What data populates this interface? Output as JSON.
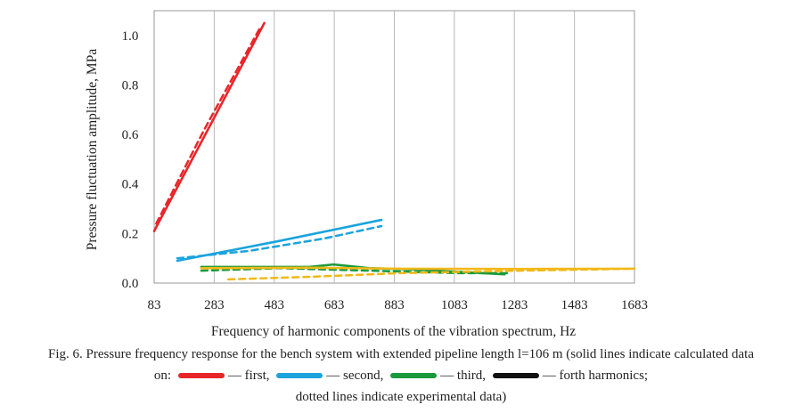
{
  "chart_data": {
    "type": "line",
    "xlabel": "Frequency of harmonic components of the vibration spectrum, Hz",
    "ylabel": "Pressure fluctuation amplitude, MPa",
    "xlim": [
      83,
      1683
    ],
    "ylim": [
      0.0,
      1.1
    ],
    "x_ticks": [
      "83",
      "283",
      "483",
      "683",
      "883",
      "1083",
      "1283",
      "1483",
      "1683"
    ],
    "y_ticks": [
      "0.0",
      "0.2",
      "0.4",
      "0.6",
      "0.8",
      "1.0"
    ],
    "grid": "vertical",
    "series": [
      {
        "harmonic": "first",
        "kind": "calculated",
        "color": "#e8262a",
        "x": [
          83,
          450
        ],
        "y": [
          0.21,
          1.05
        ]
      },
      {
        "harmonic": "first",
        "kind": "experimental",
        "color": "#e8262a",
        "x": [
          90,
          250,
          440
        ],
        "y": [
          0.24,
          0.62,
          1.04
        ]
      },
      {
        "harmonic": "second",
        "kind": "calculated",
        "color": "#1ba3dd",
        "x": [
          160,
          500,
          840
        ],
        "y": [
          0.09,
          0.17,
          0.255
        ]
      },
      {
        "harmonic": "second",
        "kind": "experimental",
        "color": "#1ba3dd",
        "x": [
          160,
          400,
          650,
          840
        ],
        "y": [
          0.1,
          0.13,
          0.18,
          0.23
        ]
      },
      {
        "harmonic": "third",
        "kind": "calculated",
        "color": "#1a9a3c",
        "x": [
          240,
          400,
          600,
          680,
          800,
          950,
          1100,
          1250
        ],
        "y": [
          0.065,
          0.065,
          0.065,
          0.075,
          0.06,
          0.055,
          0.045,
          0.035
        ]
      },
      {
        "harmonic": "third",
        "kind": "experimental",
        "color": "#1a9a3c",
        "x": [
          240,
          500,
          800,
          1100,
          1260
        ],
        "y": [
          0.05,
          0.06,
          0.05,
          0.04,
          0.04
        ]
      },
      {
        "harmonic": "forth",
        "kind": "calculated",
        "color": "#f2b818",
        "x": [
          240,
          600,
          900,
          1300,
          1683
        ],
        "y": [
          0.06,
          0.062,
          0.058,
          0.057,
          0.058
        ]
      },
      {
        "harmonic": "forth",
        "kind": "experimental",
        "color": "#f2b818",
        "x": [
          330,
          600,
          900,
          1300,
          1683
        ],
        "y": [
          0.015,
          0.025,
          0.04,
          0.05,
          0.058
        ]
      }
    ]
  },
  "caption": {
    "line1": "Fig. 6. Pressure frequency response for the bench system with extended pipeline length l=106 m (solid lines indicate calculated data",
    "line2_prefix": "on:",
    "legend": [
      {
        "label": "— first,",
        "color": "#e8262a"
      },
      {
        "label": "— second,",
        "color": "#1ba3dd"
      },
      {
        "label": "— third,",
        "color": "#1a9a3c"
      },
      {
        "label": "— forth harmonics;",
        "color": "#111111"
      }
    ],
    "line3": "dotted lines indicate experimental data)"
  }
}
